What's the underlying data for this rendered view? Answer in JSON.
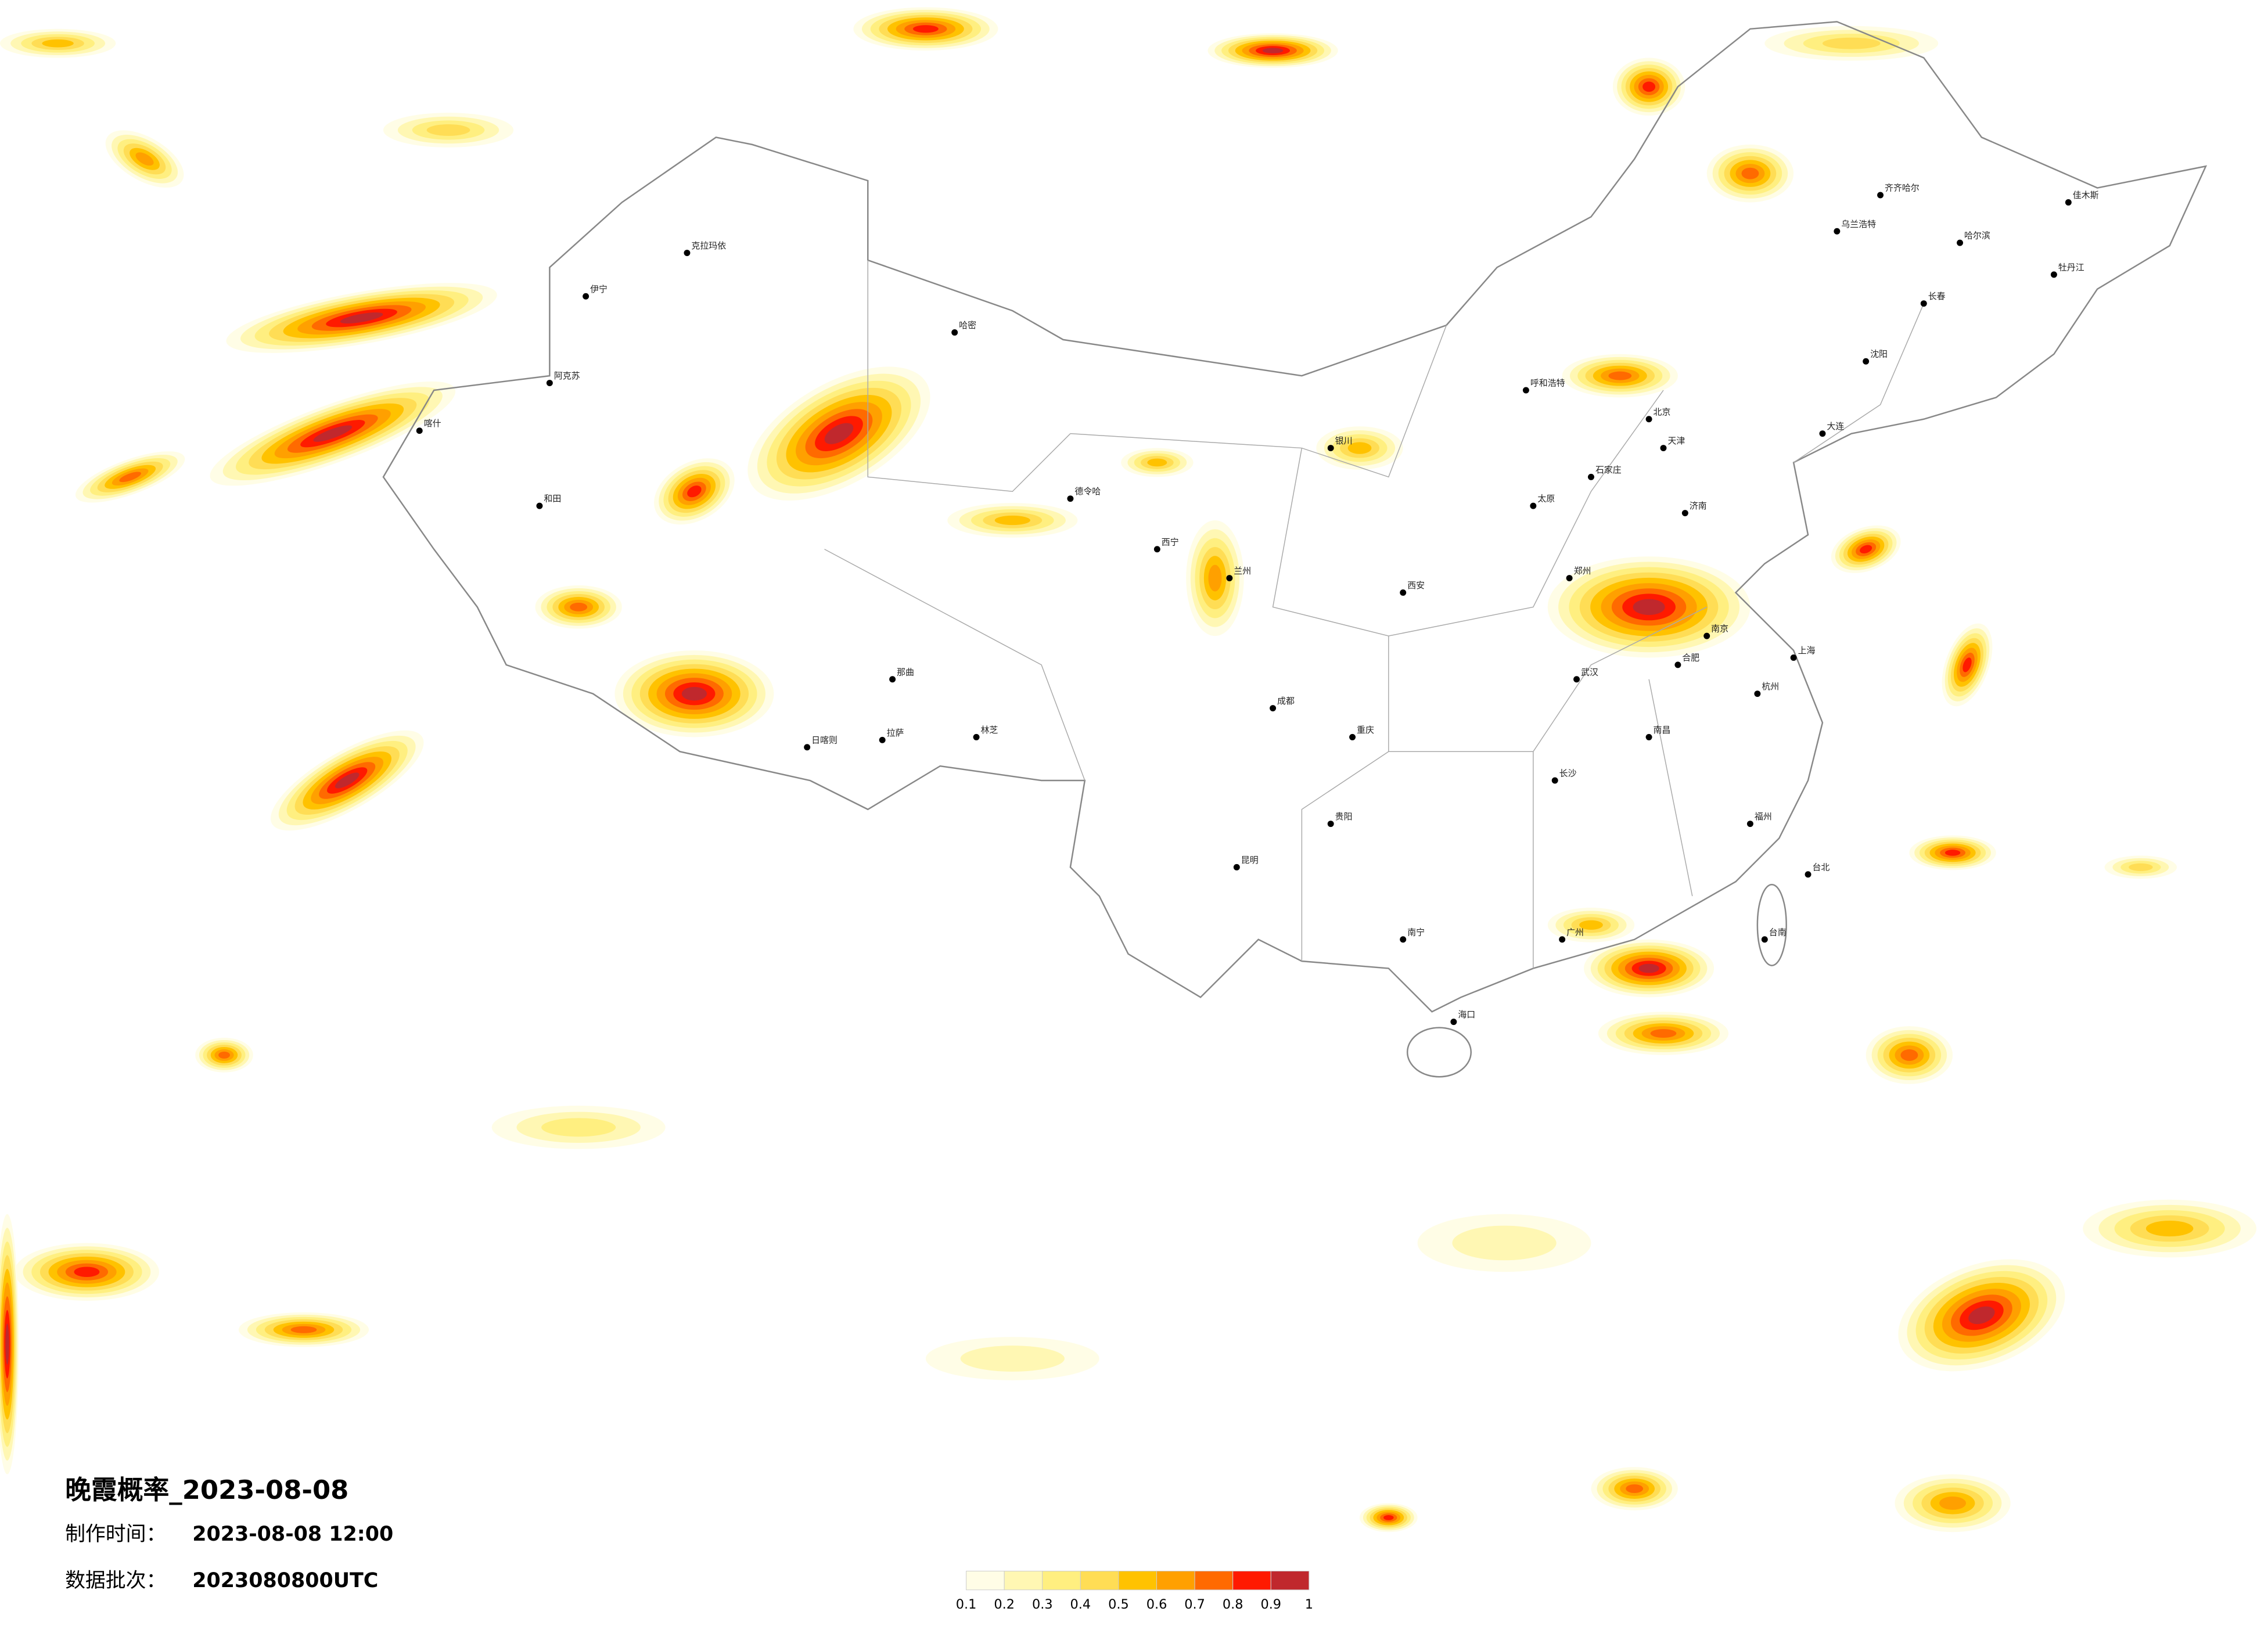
{
  "title": "晚霞概率_2023-08-08",
  "info": [
    {
      "label": "制作时间：",
      "value": "2023-08-08 12:00"
    },
    {
      "label": "数据批次：",
      "value": "2023080800UTC"
    }
  ],
  "colorbar": {
    "ticks": [
      0.1,
      0.2,
      0.3,
      0.4,
      0.5,
      0.6,
      0.7,
      0.8,
      0.9,
      1
    ],
    "colors": [
      "#fffde6",
      "#fff7b3",
      "#ffef80",
      "#ffdd55",
      "#ffc200",
      "#ffa000",
      "#ff6a00",
      "#ff1a00",
      "#c0282d"
    ]
  },
  "cities": [
    "克拉玛依",
    "伊宁",
    "阿克苏",
    "和田",
    "喀什",
    "哈密",
    "德令哈",
    "拉萨",
    "日喀则",
    "林芝",
    "那曲",
    "兰州",
    "西宁",
    "银川",
    "呼和浩特",
    "北京",
    "天津",
    "石家庄",
    "太原",
    "济南",
    "郑州",
    "西安",
    "武汉",
    "长沙",
    "南昌",
    "杭州",
    "上海",
    "南京",
    "合肥",
    "福州",
    "广州",
    "南宁",
    "昆明",
    "贵阳",
    "成都",
    "重庆",
    "海口",
    "台北",
    "哈尔滨",
    "长春",
    "沈阳",
    "大连",
    "乌兰浩特",
    "齐齐哈尔",
    "佳木斯",
    "牡丹江",
    "台南"
  ]
}
